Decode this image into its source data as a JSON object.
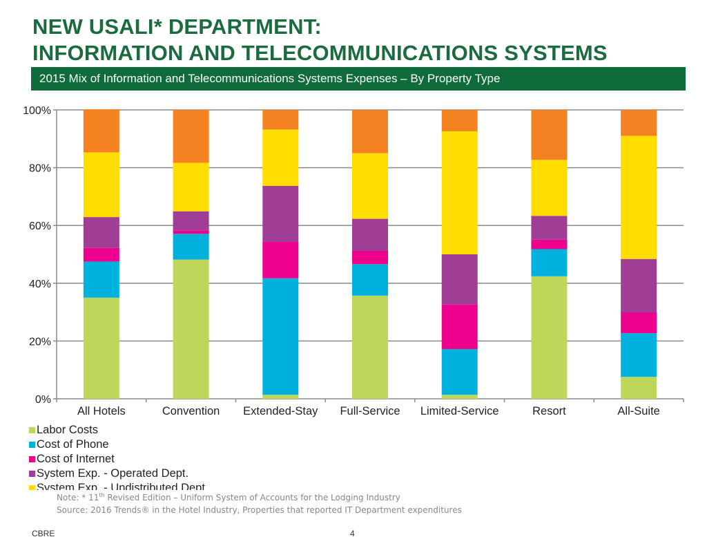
{
  "title_line1": "NEW USALI* DEPARTMENT:",
  "title_line2": "INFORMATION AND TELECOMMUNICATIONS SYSTEMS",
  "subtitle": "2015 Mix of  Information and Telecommunications Systems Expenses –  By Property Type",
  "chart_data": {
    "type": "bar",
    "stacked": true,
    "categories": [
      "All Hotels",
      "Convention",
      "Extended-Stay",
      "Full-Service",
      "Limited-Service",
      "Resort",
      "All-Suite"
    ],
    "ylim": [
      0,
      100
    ],
    "yticks": [
      "0%",
      "20%",
      "40%",
      "60%",
      "80%",
      "100%"
    ],
    "grid": true,
    "legend_position": "bottom-left",
    "series": [
      {
        "name": "Labor Costs",
        "color": "#bed65a",
        "values": [
          35.0,
          48.2,
          1.4,
          35.7,
          1.4,
          42.4,
          7.6
        ]
      },
      {
        "name": "Cost of Phone",
        "color": "#00b1de",
        "values": [
          12.5,
          8.9,
          40.3,
          10.9,
          15.8,
          9.4,
          15.1
        ]
      },
      {
        "name": "Cost of Internet",
        "color": "#ec008c",
        "values": [
          4.7,
          1.2,
          12.6,
          4.6,
          15.5,
          3.3,
          7.2
        ]
      },
      {
        "name": "System Exp. - Operated Dept.",
        "color": "#a03e95",
        "values": [
          10.7,
          6.6,
          19.4,
          11.1,
          17.3,
          8.2,
          18.5
        ]
      },
      {
        "name": "System Exp. - Undistributed Dept.",
        "color": "#ffdd00",
        "values": [
          22.4,
          16.8,
          19.5,
          22.7,
          42.6,
          19.4,
          42.6
        ]
      },
      {
        "color": "#f58220",
        "values": [
          14.9,
          18.3,
          6.8,
          15.0,
          7.4,
          17.3,
          9.0
        ]
      }
    ]
  },
  "notes": {
    "note": "Note: * 11",
    "note_sup": "th",
    "note_rest": " Revised Edition – Uniform System of Accounts for the Lodging Industry",
    "source": "Source: 2016 Trends® in the Hotel Industry, Properties that reported IT Department expenditures"
  },
  "footer": {
    "brand": "CBRE",
    "page": "4"
  }
}
